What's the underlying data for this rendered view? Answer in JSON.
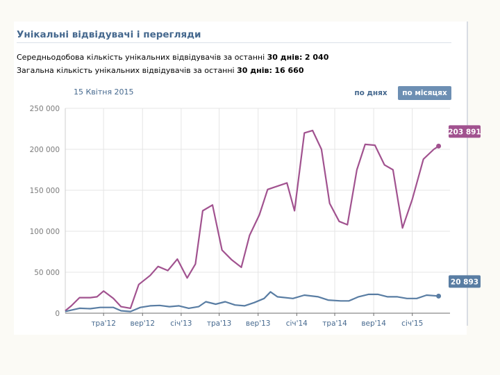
{
  "header": {
    "title": "Унікальні відвідувачі і перегляди"
  },
  "stats": {
    "avg": {
      "prefix": "Середньодобова кількість унікальних відвідувачів за останні ",
      "days": "30 днів:",
      "value": "2 040"
    },
    "total": {
      "prefix": "Загальна кількість унікальних відвідувачів за останні ",
      "days": "30 днів:",
      "value": "16 660"
    }
  },
  "toolbar": {
    "date": "15 Квітня 2015",
    "by_day_label": "по днях",
    "by_month_label": "по місяцях"
  },
  "colors": {
    "views": "#a1528f",
    "visitors": "#597da3",
    "grid": "#e5e5e5",
    "axis": "#6b6b6b"
  },
  "chart_data": {
    "type": "line",
    "title": "",
    "xlabel": "",
    "ylabel": "",
    "ylim": [
      0,
      250000
    ],
    "y_ticks": [
      {
        "value": 0,
        "label": "0"
      },
      {
        "value": 50000,
        "label": "50 000"
      },
      {
        "value": 100000,
        "label": "100 000"
      },
      {
        "value": 150000,
        "label": "150 000"
      },
      {
        "value": 200000,
        "label": "200 000"
      },
      {
        "value": 250000,
        "label": "250 000"
      }
    ],
    "xlim": [
      "2012-01-01",
      "2015-04-30"
    ],
    "x_ticks": [
      {
        "date": "2012-05-01",
        "label": "тра'12"
      },
      {
        "date": "2012-09-01",
        "label": "вер'12"
      },
      {
        "date": "2013-01-01",
        "label": "січ'13"
      },
      {
        "date": "2013-05-01",
        "label": "тра'13"
      },
      {
        "date": "2013-09-01",
        "label": "вер'13"
      },
      {
        "date": "2014-01-01",
        "label": "січ'14"
      },
      {
        "date": "2014-05-01",
        "label": "тра'14"
      },
      {
        "date": "2014-09-01",
        "label": "вер'14"
      },
      {
        "date": "2015-01-01",
        "label": "січ'15"
      }
    ],
    "series": [
      {
        "key": "views",
        "end_label": "203 891",
        "points": [
          {
            "date": "2012-01-01",
            "value": 3000
          },
          {
            "date": "2012-01-20",
            "value": 9000
          },
          {
            "date": "2012-02-15",
            "value": 19000
          },
          {
            "date": "2012-03-20",
            "value": 19000
          },
          {
            "date": "2012-04-10",
            "value": 20000
          },
          {
            "date": "2012-05-01",
            "value": 27000
          },
          {
            "date": "2012-06-01",
            "value": 18000
          },
          {
            "date": "2012-06-25",
            "value": 8000
          },
          {
            "date": "2012-07-25",
            "value": 6000
          },
          {
            "date": "2012-08-20",
            "value": 35000
          },
          {
            "date": "2012-09-25",
            "value": 46000
          },
          {
            "date": "2012-10-20",
            "value": 57000
          },
          {
            "date": "2012-11-20",
            "value": 52000
          },
          {
            "date": "2012-12-20",
            "value": 66000
          },
          {
            "date": "2013-01-20",
            "value": 43000
          },
          {
            "date": "2013-02-15",
            "value": 60000
          },
          {
            "date": "2013-03-10",
            "value": 125000
          },
          {
            "date": "2013-04-10",
            "value": 132000
          },
          {
            "date": "2013-05-10",
            "value": 77000
          },
          {
            "date": "2013-06-10",
            "value": 65000
          },
          {
            "date": "2013-07-10",
            "value": 56000
          },
          {
            "date": "2013-08-05",
            "value": 95000
          },
          {
            "date": "2013-09-05",
            "value": 120000
          },
          {
            "date": "2013-10-01",
            "value": 151000
          },
          {
            "date": "2013-11-01",
            "value": 155000
          },
          {
            "date": "2013-12-01",
            "value": 159000
          },
          {
            "date": "2013-12-25",
            "value": 125000
          },
          {
            "date": "2014-01-25",
            "value": 220000
          },
          {
            "date": "2014-02-20",
            "value": 223000
          },
          {
            "date": "2014-03-20",
            "value": 200000
          },
          {
            "date": "2014-04-15",
            "value": 134000
          },
          {
            "date": "2014-05-15",
            "value": 112000
          },
          {
            "date": "2014-06-10",
            "value": 108000
          },
          {
            "date": "2014-07-10",
            "value": 175000
          },
          {
            "date": "2014-08-05",
            "value": 206000
          },
          {
            "date": "2014-09-05",
            "value": 205000
          },
          {
            "date": "2014-10-05",
            "value": 181000
          },
          {
            "date": "2014-11-01",
            "value": 175000
          },
          {
            "date": "2014-12-01",
            "value": 104000
          },
          {
            "date": "2015-01-01",
            "value": 139000
          },
          {
            "date": "2015-02-05",
            "value": 188000
          },
          {
            "date": "2015-03-10",
            "value": 200000
          },
          {
            "date": "2015-03-25",
            "value": 203891
          }
        ]
      },
      {
        "key": "visitors",
        "end_label": "20 893",
        "points": [
          {
            "date": "2012-01-01",
            "value": 2000
          },
          {
            "date": "2012-02-15",
            "value": 6000
          },
          {
            "date": "2012-03-20",
            "value": 5500
          },
          {
            "date": "2012-04-20",
            "value": 7000
          },
          {
            "date": "2012-06-01",
            "value": 7000
          },
          {
            "date": "2012-06-25",
            "value": 3000
          },
          {
            "date": "2012-07-25",
            "value": 2000
          },
          {
            "date": "2012-08-25",
            "value": 7000
          },
          {
            "date": "2012-09-25",
            "value": 9000
          },
          {
            "date": "2012-10-25",
            "value": 9500
          },
          {
            "date": "2012-11-25",
            "value": 8000
          },
          {
            "date": "2012-12-25",
            "value": 9000
          },
          {
            "date": "2013-01-25",
            "value": 6000
          },
          {
            "date": "2013-02-25",
            "value": 8000
          },
          {
            "date": "2013-03-20",
            "value": 14000
          },
          {
            "date": "2013-04-20",
            "value": 11000
          },
          {
            "date": "2013-05-20",
            "value": 14000
          },
          {
            "date": "2013-06-20",
            "value": 10000
          },
          {
            "date": "2013-07-20",
            "value": 9000
          },
          {
            "date": "2013-08-20",
            "value": 13000
          },
          {
            "date": "2013-09-20",
            "value": 18000
          },
          {
            "date": "2013-10-10",
            "value": 26000
          },
          {
            "date": "2013-11-01",
            "value": 20000
          },
          {
            "date": "2013-12-20",
            "value": 18000
          },
          {
            "date": "2014-01-25",
            "value": 22000
          },
          {
            "date": "2014-03-10",
            "value": 20000
          },
          {
            "date": "2014-04-10",
            "value": 16000
          },
          {
            "date": "2014-05-20",
            "value": 15000
          },
          {
            "date": "2014-06-15",
            "value": 15000
          },
          {
            "date": "2014-07-15",
            "value": 20000
          },
          {
            "date": "2014-08-15",
            "value": 23000
          },
          {
            "date": "2014-09-15",
            "value": 23000
          },
          {
            "date": "2014-10-15",
            "value": 20000
          },
          {
            "date": "2014-11-15",
            "value": 20000
          },
          {
            "date": "2014-12-15",
            "value": 18000
          },
          {
            "date": "2015-01-15",
            "value": 18000
          },
          {
            "date": "2015-02-15",
            "value": 22000
          },
          {
            "date": "2015-03-25",
            "value": 20893
          }
        ]
      }
    ],
    "grid": true,
    "legend": "none"
  }
}
